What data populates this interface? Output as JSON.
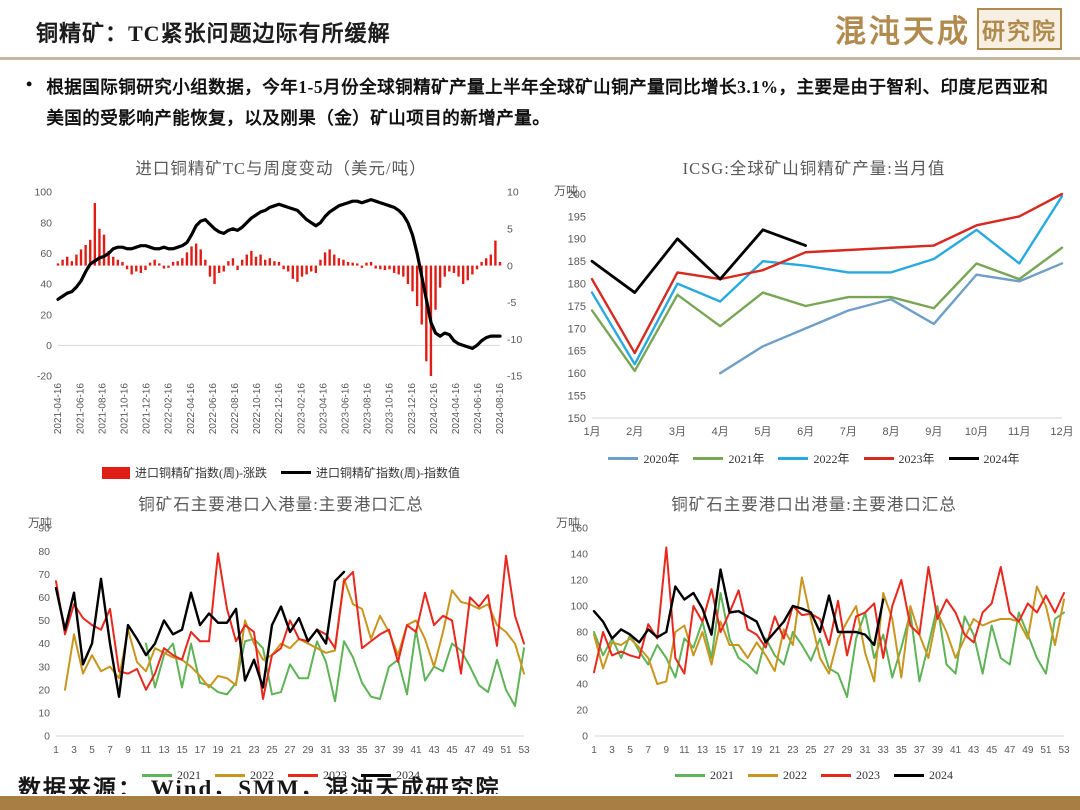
{
  "header": {
    "title": "铜精矿：TC紧张问题边际有所缓解",
    "brand": "混沌天成",
    "brand_suffix": "研究院"
  },
  "bullet": {
    "text": "根据国际铜研究小组数据，今年1-5月份全球铜精矿产量上半年全球矿山铜产量同比增长3.1%，主要是由于智利、印度尼西亚和美国的受影响产能恢复，以及刚果（金）矿山项目的新增产量。"
  },
  "footer": {
    "source": "数据来源： Wind，SMM，混沌天成研究院"
  },
  "colors": {
    "brand_gold": "#b18a4e",
    "bottom_bar": "#a87e45",
    "bar_red": "#e01d15",
    "line_black": "#000000",
    "steel_blue_2020": "#6f9fc8",
    "green_2021_icsg": "#79a655",
    "cyan_2022": "#27a9e1",
    "red_2023": "#d62a20",
    "green_2021_ports": "#5fb357",
    "gold_2022_ports": "#c8961e",
    "red_2023_ports": "#e8281e",
    "axis_text": "#595959"
  },
  "chart_data": [
    {
      "id": "tc_weekly",
      "type": "bar+line",
      "title": "进口铜精矿TC与周度变动（美元/吨）",
      "unit": "",
      "y_left": {
        "min": -20,
        "max": 100,
        "ticks": [
          100,
          80,
          60,
          40,
          20,
          0,
          -20
        ],
        "zero_line": 0
      },
      "y_right": {
        "min": -15,
        "max": 10,
        "ticks": [
          10,
          5,
          0,
          -5,
          -10,
          -15
        ]
      },
      "x_tick_labels": [
        "2021-04-16",
        "2021-06-16",
        "2021-08-16",
        "2021-10-16",
        "2021-12-16",
        "2022-02-16",
        "2022-04-16",
        "2022-06-16",
        "2022-08-16",
        "2022-10-16",
        "2022-12-16",
        "2023-02-16",
        "2023-04-16",
        "2023-06-16",
        "2023-08-16",
        "2023-10-16",
        "2023-12-16",
        "2024-02-16",
        "2024-04-16",
        "2024-06-16",
        "2024-08-16"
      ],
      "rotate_x_labels": true,
      "series": [
        {
          "name": "进口铜精矿指数(周)-涨跌",
          "type": "bar",
          "axis": "right",
          "color": "#e01d15",
          "values": [
            0.3,
            0.8,
            1.2,
            0.6,
            1.5,
            2.2,
            2.8,
            3.5,
            8.5,
            5.0,
            4.2,
            2.0,
            1.2,
            0.8,
            0.5,
            -0.5,
            -1.2,
            -0.8,
            -1.0,
            -0.6,
            0.4,
            0.8,
            0.3,
            -0.4,
            -0.3,
            0.5,
            0.6,
            1.0,
            1.8,
            2.6,
            3.0,
            2.2,
            0.8,
            -1.5,
            -2.5,
            -1.0,
            -0.8,
            0.6,
            1.0,
            -0.6,
            0.8,
            1.5,
            2.0,
            1.2,
            1.5,
            0.8,
            1.0,
            0.6,
            0.5,
            -0.5,
            -0.8,
            -1.8,
            -2.2,
            -1.5,
            -1.2,
            -0.8,
            -1.0,
            0.8,
            1.8,
            2.2,
            1.5,
            1.0,
            0.8,
            0.5,
            0.4,
            0.3,
            -0.3,
            0.4,
            0.5,
            -0.4,
            -0.5,
            -0.6,
            -0.5,
            -1.0,
            -1.2,
            -1.5,
            -2.5,
            -3.5,
            -5.5,
            -8.0,
            -13.0,
            -15.0,
            -6.0,
            -3.0,
            -1.5,
            -0.8,
            -1.0,
            -1.5,
            -2.5,
            -2.0,
            -1.2,
            -0.5,
            0.5,
            1.0,
            1.5,
            3.4,
            0.5
          ]
        },
        {
          "name": "进口铜精矿指数(周)-指数值",
          "type": "line",
          "axis": "left",
          "color": "#000000",
          "values": [
            30,
            32,
            34,
            35,
            38,
            42,
            48,
            53,
            55,
            57,
            58,
            60,
            63,
            64,
            64,
            63,
            63,
            64,
            65,
            65,
            64,
            63,
            63,
            64,
            63,
            63,
            64,
            65,
            67,
            72,
            78,
            81,
            82,
            79,
            76,
            74,
            73,
            75,
            76,
            75,
            77,
            80,
            83,
            85,
            87,
            88,
            90,
            91,
            92,
            91,
            90,
            89,
            88,
            85,
            82,
            80,
            78,
            80,
            84,
            87,
            89,
            91,
            92,
            93,
            94,
            94,
            93,
            94,
            95,
            94,
            93,
            92,
            91,
            90,
            88,
            85,
            80,
            72,
            60,
            45,
            30,
            15,
            8,
            6,
            8,
            7,
            3,
            1,
            0,
            -1,
            -2,
            0,
            3,
            5,
            6,
            6,
            6
          ]
        }
      ]
    },
    {
      "id": "icsg",
      "type": "line",
      "title": "ICSG:全球矿山铜精矿产量:当月值",
      "unit": "万吨",
      "y_left": {
        "min": 150,
        "max": 200,
        "ticks": [
          200,
          195,
          190,
          185,
          180,
          175,
          170,
          165,
          160,
          155,
          150
        ],
        "zero_line": 150
      },
      "x_tick_labels": [
        "1月",
        "2月",
        "3月",
        "4月",
        "5月",
        "6月",
        "7月",
        "8月",
        "9月",
        "10月",
        "11月",
        "12月"
      ],
      "rotate_x_labels": false,
      "series": [
        {
          "name": "2020年",
          "type": "line",
          "axis": "left",
          "color": "#6f9fc8",
          "values": [
            null,
            null,
            null,
            160,
            166,
            170,
            174,
            176.5,
            171,
            182,
            180.5,
            184.5
          ]
        },
        {
          "name": "2021年",
          "type": "line",
          "axis": "left",
          "color": "#79a655",
          "values": [
            174,
            160.5,
            177.5,
            170.5,
            178,
            175,
            177,
            177,
            174.5,
            184.5,
            181,
            188
          ]
        },
        {
          "name": "2022年",
          "type": "line",
          "axis": "left",
          "color": "#27a9e1",
          "values": [
            178,
            162,
            180,
            176,
            185,
            184,
            182.5,
            182.5,
            185.5,
            192,
            184.5,
            199.5
          ]
        },
        {
          "name": "2023年",
          "type": "line",
          "axis": "left",
          "color": "#d62a20",
          "values": [
            181,
            164.5,
            182.5,
            181,
            183,
            187,
            187.5,
            188,
            188.5,
            193,
            195,
            200
          ]
        },
        {
          "name": "2024年",
          "type": "line",
          "axis": "left",
          "color": "#000000",
          "values": [
            185,
            178,
            190,
            181,
            192,
            188.5,
            null,
            null,
            null,
            null,
            null,
            null
          ]
        }
      ]
    },
    {
      "id": "inbound",
      "type": "line",
      "title": "铜矿石主要港口入港量:主要港口汇总",
      "unit": "万吨",
      "y_left": {
        "min": 0,
        "max": 90,
        "ticks": [
          90,
          80,
          70,
          60,
          50,
          40,
          30,
          20,
          10,
          0
        ],
        "zero_line": 0
      },
      "x_tick_labels": [
        "1",
        "3",
        "5",
        "7",
        "9",
        "11",
        "13",
        "15",
        "17",
        "19",
        "21",
        "23",
        "25",
        "27",
        "29",
        "31",
        "33",
        "35",
        "37",
        "39",
        "41",
        "43",
        "45",
        "47",
        "49",
        "51",
        "53"
      ],
      "rotate_x_labels": false,
      "series": [
        {
          "name": "2021",
          "type": "line",
          "axis": "left",
          "color": "#5fb357",
          "values": [
            null,
            null,
            null,
            null,
            null,
            null,
            null,
            null,
            null,
            null,
            40,
            21,
            35,
            40,
            21,
            40,
            23,
            22,
            19,
            18,
            23,
            41,
            42,
            38,
            18,
            19,
            31,
            25,
            25,
            41,
            32,
            15,
            41,
            34,
            23,
            17,
            16,
            30,
            33,
            18,
            46,
            24,
            30,
            28,
            40,
            37,
            30,
            22,
            19,
            33,
            20,
            13,
            38
          ]
        },
        {
          "name": "2022",
          "type": "line",
          "axis": "left",
          "color": "#c8961e",
          "values": [
            null,
            20,
            44,
            27,
            35,
            28,
            30,
            25,
            46,
            32,
            28,
            38,
            36,
            34,
            33,
            30,
            26,
            21,
            26,
            25,
            22,
            50,
            40,
            33,
            35,
            40,
            38,
            42,
            40,
            38,
            36,
            37,
            68,
            57,
            55,
            42,
            52,
            45,
            35,
            48,
            50,
            42,
            30,
            45,
            63,
            58,
            57,
            55,
            57,
            48,
            45,
            40,
            27
          ]
        },
        {
          "name": "2023",
          "type": "line",
          "axis": "left",
          "color": "#e8281e",
          "values": [
            67,
            44,
            57,
            51,
            48,
            46,
            55,
            28,
            27,
            29,
            20,
            27,
            38,
            35,
            33,
            45,
            41,
            41,
            79,
            55,
            41,
            48,
            45,
            16,
            35,
            38,
            50,
            42,
            41,
            46,
            44,
            38,
            67,
            71,
            38,
            41,
            44,
            46,
            32,
            48,
            45,
            62,
            48,
            52,
            50,
            27,
            60,
            56,
            61,
            39,
            78,
            52,
            40
          ]
        },
        {
          "name": "2024",
          "type": "line",
          "axis": "left",
          "color": "#000000",
          "values": [
            64,
            46,
            62,
            31,
            40,
            68,
            40,
            17,
            48,
            42,
            35,
            40,
            50,
            44,
            46,
            62,
            48,
            53,
            49,
            49,
            55,
            24,
            33,
            21,
            48,
            56,
            45,
            51,
            41,
            46,
            40,
            67,
            71,
            null,
            null,
            null,
            null,
            null,
            null,
            null,
            null,
            null,
            null,
            null,
            null,
            null,
            null,
            null,
            null,
            null,
            null,
            null,
            null
          ]
        }
      ]
    },
    {
      "id": "outbound",
      "type": "line",
      "title": "铜矿石主要港口出港量:主要港口汇总",
      "unit": "万吨",
      "y_left": {
        "min": 0,
        "max": 160,
        "ticks": [
          160,
          140,
          120,
          100,
          80,
          60,
          40,
          20,
          0
        ],
        "zero_line": 0
      },
      "x_tick_labels": [
        "1",
        "3",
        "5",
        "7",
        "9",
        "11",
        "13",
        "15",
        "17",
        "19",
        "21",
        "23",
        "25",
        "27",
        "29",
        "31",
        "33",
        "35",
        "37",
        "39",
        "41",
        "43",
        "45",
        "47",
        "49",
        "51",
        "53"
      ],
      "rotate_x_labels": false,
      "series": [
        {
          "name": "2021",
          "type": "line",
          "axis": "left",
          "color": "#5fb357",
          "values": [
            80,
            62,
            75,
            60,
            78,
            65,
            55,
            70,
            60,
            45,
            75,
            68,
            88,
            60,
            110,
            75,
            60,
            55,
            48,
            75,
            62,
            55,
            80,
            70,
            58,
            75,
            52,
            48,
            30,
            75,
            95,
            60,
            78,
            45,
            68,
            95,
            42,
            70,
            100,
            55,
            48,
            92,
            78,
            48,
            85,
            60,
            55,
            95,
            78,
            60,
            48,
            90,
            95
          ]
        },
        {
          "name": "2022",
          "type": "line",
          "axis": "left",
          "color": "#c8961e",
          "values": [
            78,
            52,
            72,
            70,
            75,
            68,
            60,
            40,
            42,
            80,
            85,
            62,
            80,
            55,
            88,
            70,
            70,
            60,
            72,
            62,
            50,
            82,
            70,
            122,
            90,
            60,
            48,
            75,
            88,
            100,
            64,
            42,
            110,
            90,
            45,
            100,
            78,
            60,
            95,
            80,
            60,
            75,
            90,
            85,
            88,
            90,
            90,
            88,
            75,
            115,
            100,
            70,
            105
          ]
        },
        {
          "name": "2023",
          "type": "line",
          "axis": "left",
          "color": "#e8281e",
          "values": [
            49,
            80,
            62,
            65,
            62,
            60,
            86,
            75,
            145,
            60,
            48,
            100,
            88,
            113,
            80,
            95,
            112,
            82,
            78,
            68,
            92,
            75,
            100,
            93,
            94,
            90,
            70,
            104,
            62,
            92,
            95,
            102,
            60,
            100,
            120,
            85,
            78,
            130,
            90,
            105,
            95,
            78,
            72,
            95,
            102,
            130,
            95,
            88,
            102,
            95,
            108,
            95,
            110
          ]
        },
        {
          "name": "2024",
          "type": "line",
          "axis": "left",
          "color": "#000000",
          "values": [
            96,
            88,
            75,
            82,
            78,
            72,
            82,
            76,
            80,
            115,
            105,
            110,
            98,
            78,
            128,
            95,
            96,
            92,
            88,
            72,
            80,
            88,
            100,
            98,
            95,
            80,
            108,
            80,
            80,
            80,
            78,
            70,
            105,
            null,
            null,
            null,
            null,
            null,
            null,
            null,
            null,
            null,
            null,
            null,
            null,
            null,
            null,
            null,
            null,
            null,
            null,
            null,
            null
          ]
        }
      ]
    }
  ]
}
